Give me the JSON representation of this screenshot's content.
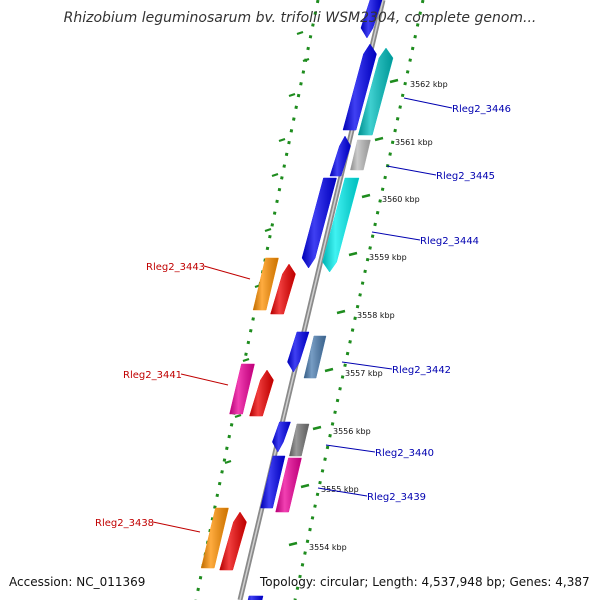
{
  "title": "Rhizobium leguminosarum bv. trifolii WSM2304, complete genom...",
  "footer": {
    "accession": "Accession: NC_011369",
    "topology": "Topology: circular; Length: 4,537,948 bp; Genes: 4,387"
  },
  "colors": {
    "backbone": "#8a8a8a",
    "dotted_ring": "#1e8c1e",
    "label_forward": "#0000b0",
    "label_reverse": "#c00000"
  },
  "ticks": [
    {
      "label": "3562 kbp",
      "kbp": 3562
    },
    {
      "label": "3561 kbp",
      "kbp": 3561
    },
    {
      "label": "3560 kbp",
      "kbp": 3560
    },
    {
      "label": "3559 kbp",
      "kbp": 3559
    },
    {
      "label": "3558 kbp",
      "kbp": 3558
    },
    {
      "label": "3557 kbp",
      "kbp": 3557
    },
    {
      "label": "3556 kbp",
      "kbp": 3556
    },
    {
      "label": "3555 kbp",
      "kbp": 3555
    },
    {
      "label": "3554 kbp",
      "kbp": 3554
    }
  ],
  "labels": [
    {
      "text": "Rleg2_3446",
      "strand": "forward"
    },
    {
      "text": "Rleg2_3445",
      "strand": "forward"
    },
    {
      "text": "Rleg2_3444",
      "strand": "forward"
    },
    {
      "text": "Rleg2_3443",
      "strand": "reverse"
    },
    {
      "text": "Rleg2_3442",
      "strand": "forward"
    },
    {
      "text": "Rleg2_3441",
      "strand": "reverse"
    },
    {
      "text": "Rleg2_3440",
      "strand": "forward"
    },
    {
      "text": "Rleg2_3439",
      "strand": "forward"
    },
    {
      "text": "Rleg2_3438",
      "strand": "reverse"
    }
  ]
}
